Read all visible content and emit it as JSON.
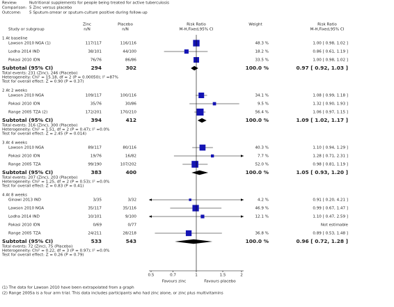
{
  "chart_data": {
    "type": "forest",
    "header": [
      {
        "label": "Review:",
        "text": "Nutritional supplements for people being treated for active tuberculosis"
      },
      {
        "label": "Comparison:",
        "text": "5 Zinc versus placebo"
      },
      {
        "label": "Outcome:",
        "text": "5 Sputum-smear or sputum-culture positive during follow-up"
      }
    ],
    "columns": {
      "study": "Study or subgroup",
      "zinc": [
        "Zinc",
        "n/N"
      ],
      "placebo": [
        "Placebo",
        "n/N"
      ],
      "plot": [
        "Risk Ratio",
        "M-H,Fixed,95% CI"
      ],
      "weight": "Weight",
      "ci": [
        "Risk Ratio",
        "M-H,Fixed,95% CI"
      ]
    },
    "groups": [
      {
        "name": "1 At baseline",
        "studies": [
          {
            "name": "Lawson 2010 NGA (1)",
            "zinc": "117/117",
            "placebo": "116/116",
            "weight": "48.3 %",
            "ci_label": "1.00 [ 0.98, 1.02 ]",
            "rr": 1.0,
            "lo": 0.98,
            "hi": 1.02
          },
          {
            "name": "Lodha 2014 IND",
            "zinc": "38/101",
            "placebo": "44/100",
            "weight": "18.2 %",
            "ci_label": "0.86 [ 0.61, 1.19 ]",
            "rr": 0.86,
            "lo": 0.61,
            "hi": 1.19
          },
          {
            "name": "Pakasi 2010 IDN",
            "zinc": "76/76",
            "placebo": "86/86",
            "weight": "33.5 %",
            "ci_label": "1.00 [ 0.98, 1.02 ]",
            "rr": 1.0,
            "lo": 0.98,
            "hi": 1.02
          }
        ],
        "subtotal": {
          "name": "Subtotal (95% CI)",
          "zinc": "294",
          "placebo": "302",
          "weight": "100.0 %",
          "ci_label": "0.97 [ 0.92, 1.03 ]",
          "rr": 0.97,
          "lo": 0.92,
          "hi": 1.03
        },
        "notes": [
          "Total events: 231 (Zinc), 246 (Placebo)",
          "Heterogeneity: Chi² = 15.18, df = 2 (P = 0.00050); I² =87%",
          "Test for overall effect: Z = 0.90 (P = 0.37)"
        ]
      },
      {
        "name": "2 At 2 weeks",
        "studies": [
          {
            "name": "Lawson 2010 NGA",
            "zinc": "109/117",
            "placebo": "100/116",
            "weight": "34.1 %",
            "ci_label": "1.08 [ 0.99, 1.18 ]",
            "rr": 1.08,
            "lo": 0.99,
            "hi": 1.18
          },
          {
            "name": "Pakasi 2010 IDN",
            "zinc": "35/76",
            "placebo": "30/86",
            "weight": "9.5 %",
            "ci_label": "1.32 [ 0.90, 1.93 ]",
            "rr": 1.32,
            "lo": 0.9,
            "hi": 1.93
          },
          {
            "name": "Range 2005 TZA (2)",
            "zinc": "172/201",
            "placebo": "170/210",
            "weight": "56.4 %",
            "ci_label": "1.06 [ 0.97, 1.15 ]",
            "rr": 1.06,
            "lo": 0.97,
            "hi": 1.15
          }
        ],
        "subtotal": {
          "name": "Subtotal (95% CI)",
          "zinc": "394",
          "placebo": "412",
          "weight": "100.0 %",
          "ci_label": "1.09 [ 1.02, 1.17 ]",
          "rr": 1.09,
          "lo": 1.02,
          "hi": 1.17
        },
        "notes": [
          "Total events: 316 (Zinc), 300 (Placebo)",
          "Heterogeneity: Chi² = 1.51, df = 2 (P = 0.47); I² =0.0%",
          "Test for overall effect: Z = 2.45 (P = 0.014)"
        ]
      },
      {
        "name": "3 At 4 weeks",
        "studies": [
          {
            "name": "Lawson 2010 NGA",
            "zinc": "89/117",
            "placebo": "80/116",
            "weight": "40.3 %",
            "ci_label": "1.10 [ 0.94, 1.29 ]",
            "rr": 1.1,
            "lo": 0.94,
            "hi": 1.29
          },
          {
            "name": "Pakasi 2010 IDN",
            "zinc": "19/76",
            "placebo": "16/82",
            "weight": "7.7 %",
            "ci_label": "1.28 [ 0.71, 2.31 ]",
            "rr": 1.28,
            "lo": 0.71,
            "hi": 2.31
          },
          {
            "name": "Range 2005 TZA",
            "zinc": "99/190",
            "placebo": "107/202",
            "weight": "52.0 %",
            "ci_label": "0.98 [ 0.81, 1.19 ]",
            "rr": 0.98,
            "lo": 0.81,
            "hi": 1.19
          }
        ],
        "subtotal": {
          "name": "Subtotal (95% CI)",
          "zinc": "383",
          "placebo": "400",
          "weight": "100.0 %",
          "ci_label": "1.05 [ 0.93, 1.20 ]",
          "rr": 1.05,
          "lo": 0.93,
          "hi": 1.2
        },
        "notes": [
          "Total events: 207 (Zinc), 203 (Placebo)",
          "Heterogeneity: Chi² = 1.25, df = 2 (P = 0.53); I² =0.0%",
          "Test for overall effect: Z = 0.83 (P = 0.41)"
        ]
      },
      {
        "name": "4 At 8 weeks",
        "studies": [
          {
            "name": "Ginawi 2013 IND",
            "zinc": "3/35",
            "placebo": "3/32",
            "weight": "4.2 %",
            "ci_label": "0.91 [ 0.20, 4.21 ]",
            "rr": 0.91,
            "lo": 0.2,
            "hi": 4.21
          },
          {
            "name": "Lawson 2010 NGA",
            "zinc": "35/117",
            "placebo": "35/116",
            "weight": "46.9 %",
            "ci_label": "0.99 [ 0.67, 1.47 ]",
            "rr": 0.99,
            "lo": 0.67,
            "hi": 1.47
          },
          {
            "name": "Lodha 2014 IND",
            "zinc": "10/101",
            "placebo": "9/100",
            "weight": "12.1 %",
            "ci_label": "1.10 [ 0.47, 2.59 ]",
            "rr": 1.1,
            "lo": 0.47,
            "hi": 2.59
          },
          {
            "name": "Pakasi 2010 IDN",
            "zinc": "0/69",
            "placebo": "0/77",
            "ci_label": "Not estimable"
          },
          {
            "name": "Range 2005 TZA",
            "zinc": "24/211",
            "placebo": "28/218",
            "weight": "36.8 %",
            "ci_label": "0.89 [ 0.53, 1.48 ]",
            "rr": 0.89,
            "lo": 0.53,
            "hi": 1.48
          }
        ],
        "subtotal": {
          "name": "Subtotal (95% CI)",
          "zinc": "533",
          "placebo": "543",
          "weight": "100.0 %",
          "ci_label": "0.96 [ 0.72, 1.28 ]",
          "rr": 0.96,
          "lo": 0.72,
          "hi": 1.28
        },
        "notes": [
          "Total events: 72 (Zinc), 75 (Placebo)",
          "Heterogeneity: Chi² = 0.22, df = 3 (P = 0.97); I² =0.0%",
          "Test for overall effect: Z = 0.26 (P = 0.79)"
        ]
      }
    ],
    "log_scale": true,
    "xlim": [
      0.5,
      2
    ],
    "xticks": [
      0.5,
      0.7,
      1,
      1.5,
      2
    ],
    "favours": [
      "Favours zinc",
      "Favours placebo"
    ],
    "marker_color": "#1414b4",
    "footnotes": [
      "(1) The data for Lawson 2010 have been extrapolated from a graph",
      "(2) Range 2005a is a four arm trial. This data includes participants who had zinc alone, or zinc plus multivitamins"
    ]
  }
}
